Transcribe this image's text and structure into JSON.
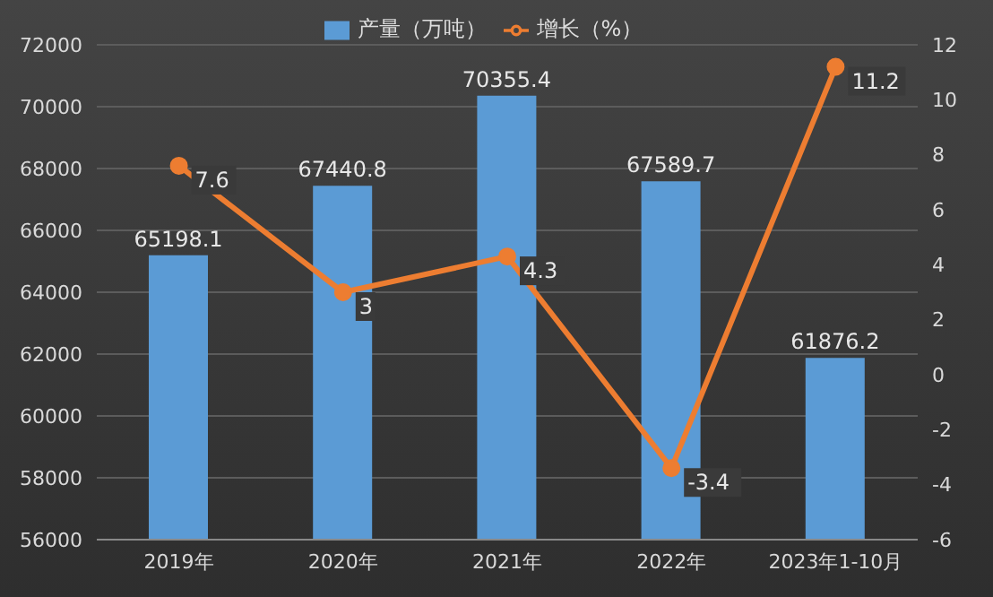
{
  "chart_data": {
    "type": "bar",
    "categories": [
      "2019年",
      "2020年",
      "2021年",
      "2022年",
      "2023年1-10月"
    ],
    "series": [
      {
        "name": "产量（万吨）",
        "color": "#5b9bd5",
        "values": [
          65198.1,
          67440.8,
          70355.4,
          67589.7,
          61876.2
        ]
      },
      {
        "name": "增长（%）",
        "type": "line",
        "axis": "y2",
        "color": "#ed7d31",
        "values": [
          7.6,
          3,
          4.3,
          -3.4,
          11.2
        ]
      }
    ],
    "ylim": [
      56000,
      72000
    ],
    "yticks": [
      56000,
      58000,
      60000,
      62000,
      64000,
      66000,
      68000,
      70000,
      72000
    ],
    "y2lim": [
      -6,
      12
    ],
    "y2ticks": [
      -6,
      -4,
      -2,
      0,
      2,
      4,
      6,
      8,
      10,
      12
    ],
    "grid": "y",
    "legend": "top",
    "marker": "circle",
    "data_labels": true
  }
}
